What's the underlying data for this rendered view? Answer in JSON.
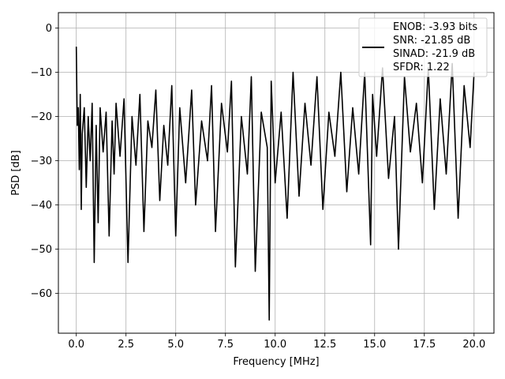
{
  "chart_data": {
    "type": "line",
    "title": "",
    "xlabel": "Frequency [MHz]",
    "ylabel": "PSD [dB]",
    "xlim": [
      -0.9,
      21.0
    ],
    "ylim": [
      -69.0,
      3.5
    ],
    "xticks": [
      0.0,
      2.5,
      5.0,
      7.5,
      10.0,
      12.5,
      15.0,
      17.5,
      20.0
    ],
    "xtick_labels": [
      "0.0",
      "2.5",
      "5.0",
      "7.5",
      "10.0",
      "12.5",
      "15.0",
      "17.5",
      "20.0"
    ],
    "yticks": [
      0,
      -10,
      -20,
      -30,
      -40,
      -50,
      -60
    ],
    "ytick_labels": [
      "0",
      "−10",
      "−20",
      "−30",
      "−40",
      "−50",
      "−60"
    ],
    "grid": true,
    "legend_position": "top-right",
    "line_color": "#000000",
    "legend": {
      "entries": [
        "ENOB: -3.93 bits",
        "SNR: -21.85 dB",
        "SINAD: -21.9 dB",
        "SFDR: 1.22"
      ]
    },
    "series": [
      {
        "x": [
          0.0,
          0.05,
          0.1,
          0.15,
          0.2,
          0.25,
          0.3,
          0.4,
          0.5,
          0.6,
          0.7,
          0.8,
          0.9,
          1.0,
          1.1,
          1.2,
          1.35,
          1.5,
          1.65,
          1.8,
          1.9,
          2.0,
          2.2,
          2.4,
          2.6,
          2.8,
          3.0,
          3.2,
          3.4,
          3.6,
          3.8,
          4.0,
          4.2,
          4.4,
          4.6,
          4.8,
          5.0,
          5.2,
          5.5,
          5.8,
          6.0,
          6.3,
          6.6,
          6.8,
          7.0,
          7.3,
          7.6,
          7.8,
          8.0,
          8.3,
          8.6,
          8.8,
          9.0,
          9.3,
          9.6,
          9.7,
          9.8,
          10.0,
          10.3,
          10.6,
          10.9,
          11.2,
          11.5,
          11.8,
          12.1,
          12.4,
          12.7,
          13.0,
          13.3,
          13.6,
          13.9,
          14.2,
          14.5,
          14.8,
          14.9,
          15.1,
          15.4,
          15.7,
          16.0,
          16.2,
          16.5,
          16.8,
          17.1,
          17.4,
          17.7,
          18.0,
          18.3,
          18.6,
          18.9,
          19.2,
          19.5,
          19.8,
          20.0
        ],
        "y": [
          -4.2,
          -22,
          -18,
          -32,
          -15,
          -41,
          -24,
          -18,
          -36,
          -20,
          -30,
          -17,
          -53,
          -22,
          -44,
          -18,
          -28,
          -19,
          -47,
          -21,
          -33,
          -17,
          -29,
          -16,
          -53,
          -20,
          -31,
          -15,
          -46,
          -21,
          -27,
          -14,
          -39,
          -22,
          -31,
          -13,
          -47,
          -18,
          -35,
          -14,
          -40,
          -21,
          -30,
          -13,
          -46,
          -17,
          -28,
          -12,
          -54,
          -20,
          -33,
          -11,
          -55,
          -19,
          -27,
          -66,
          -12,
          -35,
          -19,
          -43,
          -10,
          -38,
          -17,
          -31,
          -11,
          -41,
          -19,
          -29,
          -10,
          -37,
          -18,
          -33,
          -10,
          -49,
          -15,
          -29,
          -9,
          -34,
          -20,
          -50,
          -11,
          -28,
          -17,
          -35,
          -9,
          -41,
          -16,
          -33,
          -8,
          -43,
          -13,
          -27,
          -10
        ]
      }
    ]
  }
}
